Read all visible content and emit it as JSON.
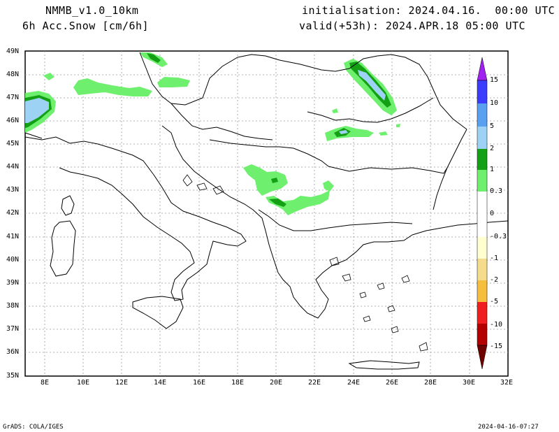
{
  "header": {
    "model": "NMMB_v1.0_10km",
    "field": "6h Acc.Snow [cm/6h]",
    "init": "initialisation: 2024.04.16.  00:00 UTC",
    "valid": "valid(+53h): 2024.APR.18 05:00 UTC"
  },
  "map": {
    "lat_labels": [
      "49N",
      "48N",
      "47N",
      "46N",
      "45N",
      "44N",
      "43N",
      "42N",
      "41N",
      "40N",
      "39N",
      "38N",
      "37N",
      "36N",
      "35N"
    ],
    "lon_labels": [
      "8E",
      "10E",
      "12E",
      "14E",
      "16E",
      "18E",
      "20E",
      "22E",
      "24E",
      "26E",
      "28E",
      "30E",
      "32E"
    ],
    "extent": {
      "lon": [
        7,
        32
      ],
      "lat": [
        35,
        49
      ]
    }
  },
  "legend": {
    "entries": [
      {
        "label": "15",
        "color": "#a020f0"
      },
      {
        "label": "10",
        "color": "#3c3cff"
      },
      {
        "label": "5",
        "color": "#5aa0f0"
      },
      {
        "label": "2",
        "color": "#9ed2f5"
      },
      {
        "label": "1",
        "color": "#14a014"
      },
      {
        "label": "0.3",
        "color": "#6ef06e"
      },
      {
        "label": "0",
        "color": "#ffffff"
      },
      {
        "label": "-0.3",
        "color": "#ffffd0"
      },
      {
        "label": "-1",
        "color": "#f5dc8c"
      },
      {
        "label": "-2",
        "color": "#f5be3c"
      },
      {
        "label": "-5",
        "color": "#f58c3c"
      },
      {
        "label": "-10",
        "color": "#f01e1e"
      },
      {
        "label": "-15",
        "color": "#b40000"
      }
    ]
  },
  "footer": {
    "left": "GrADS: COLA/IGES",
    "right": "2024-04-16-07:27"
  }
}
